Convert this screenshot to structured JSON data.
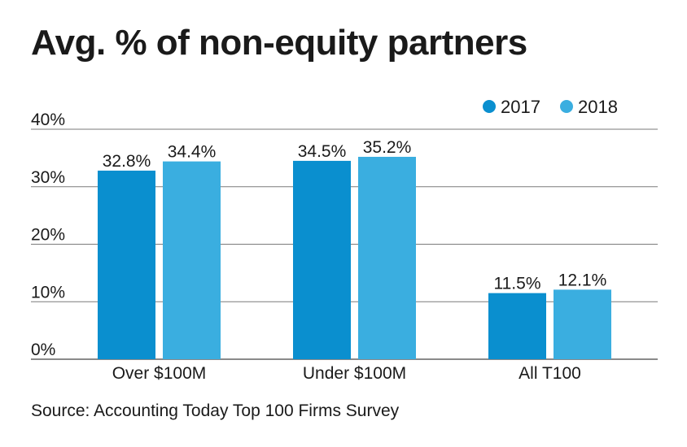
{
  "chart_data": {
    "type": "bar",
    "title": "Avg. % of non-equity partners",
    "source": "Source: Accounting Today Top 100 Firms Survey",
    "categories": [
      "Over $100M",
      "Under $100M",
      "All T100"
    ],
    "series": [
      {
        "name": "2017",
        "color": "#0a8fcf",
        "values": [
          32.8,
          34.5,
          11.5
        ],
        "labels": [
          "32.8%",
          "34.5%",
          "11.5%"
        ]
      },
      {
        "name": "2018",
        "color": "#3aaee0",
        "values": [
          34.4,
          35.2,
          12.1
        ],
        "labels": [
          "34.4%",
          "35.2%",
          "12.1%"
        ]
      }
    ],
    "yticks": [
      0,
      10,
      20,
      30,
      40
    ],
    "ytick_labels": [
      "0%",
      "10%",
      "20%",
      "30%",
      "40%"
    ],
    "ylim": [
      0,
      40
    ],
    "grid": true,
    "legend_position": "top-right"
  }
}
